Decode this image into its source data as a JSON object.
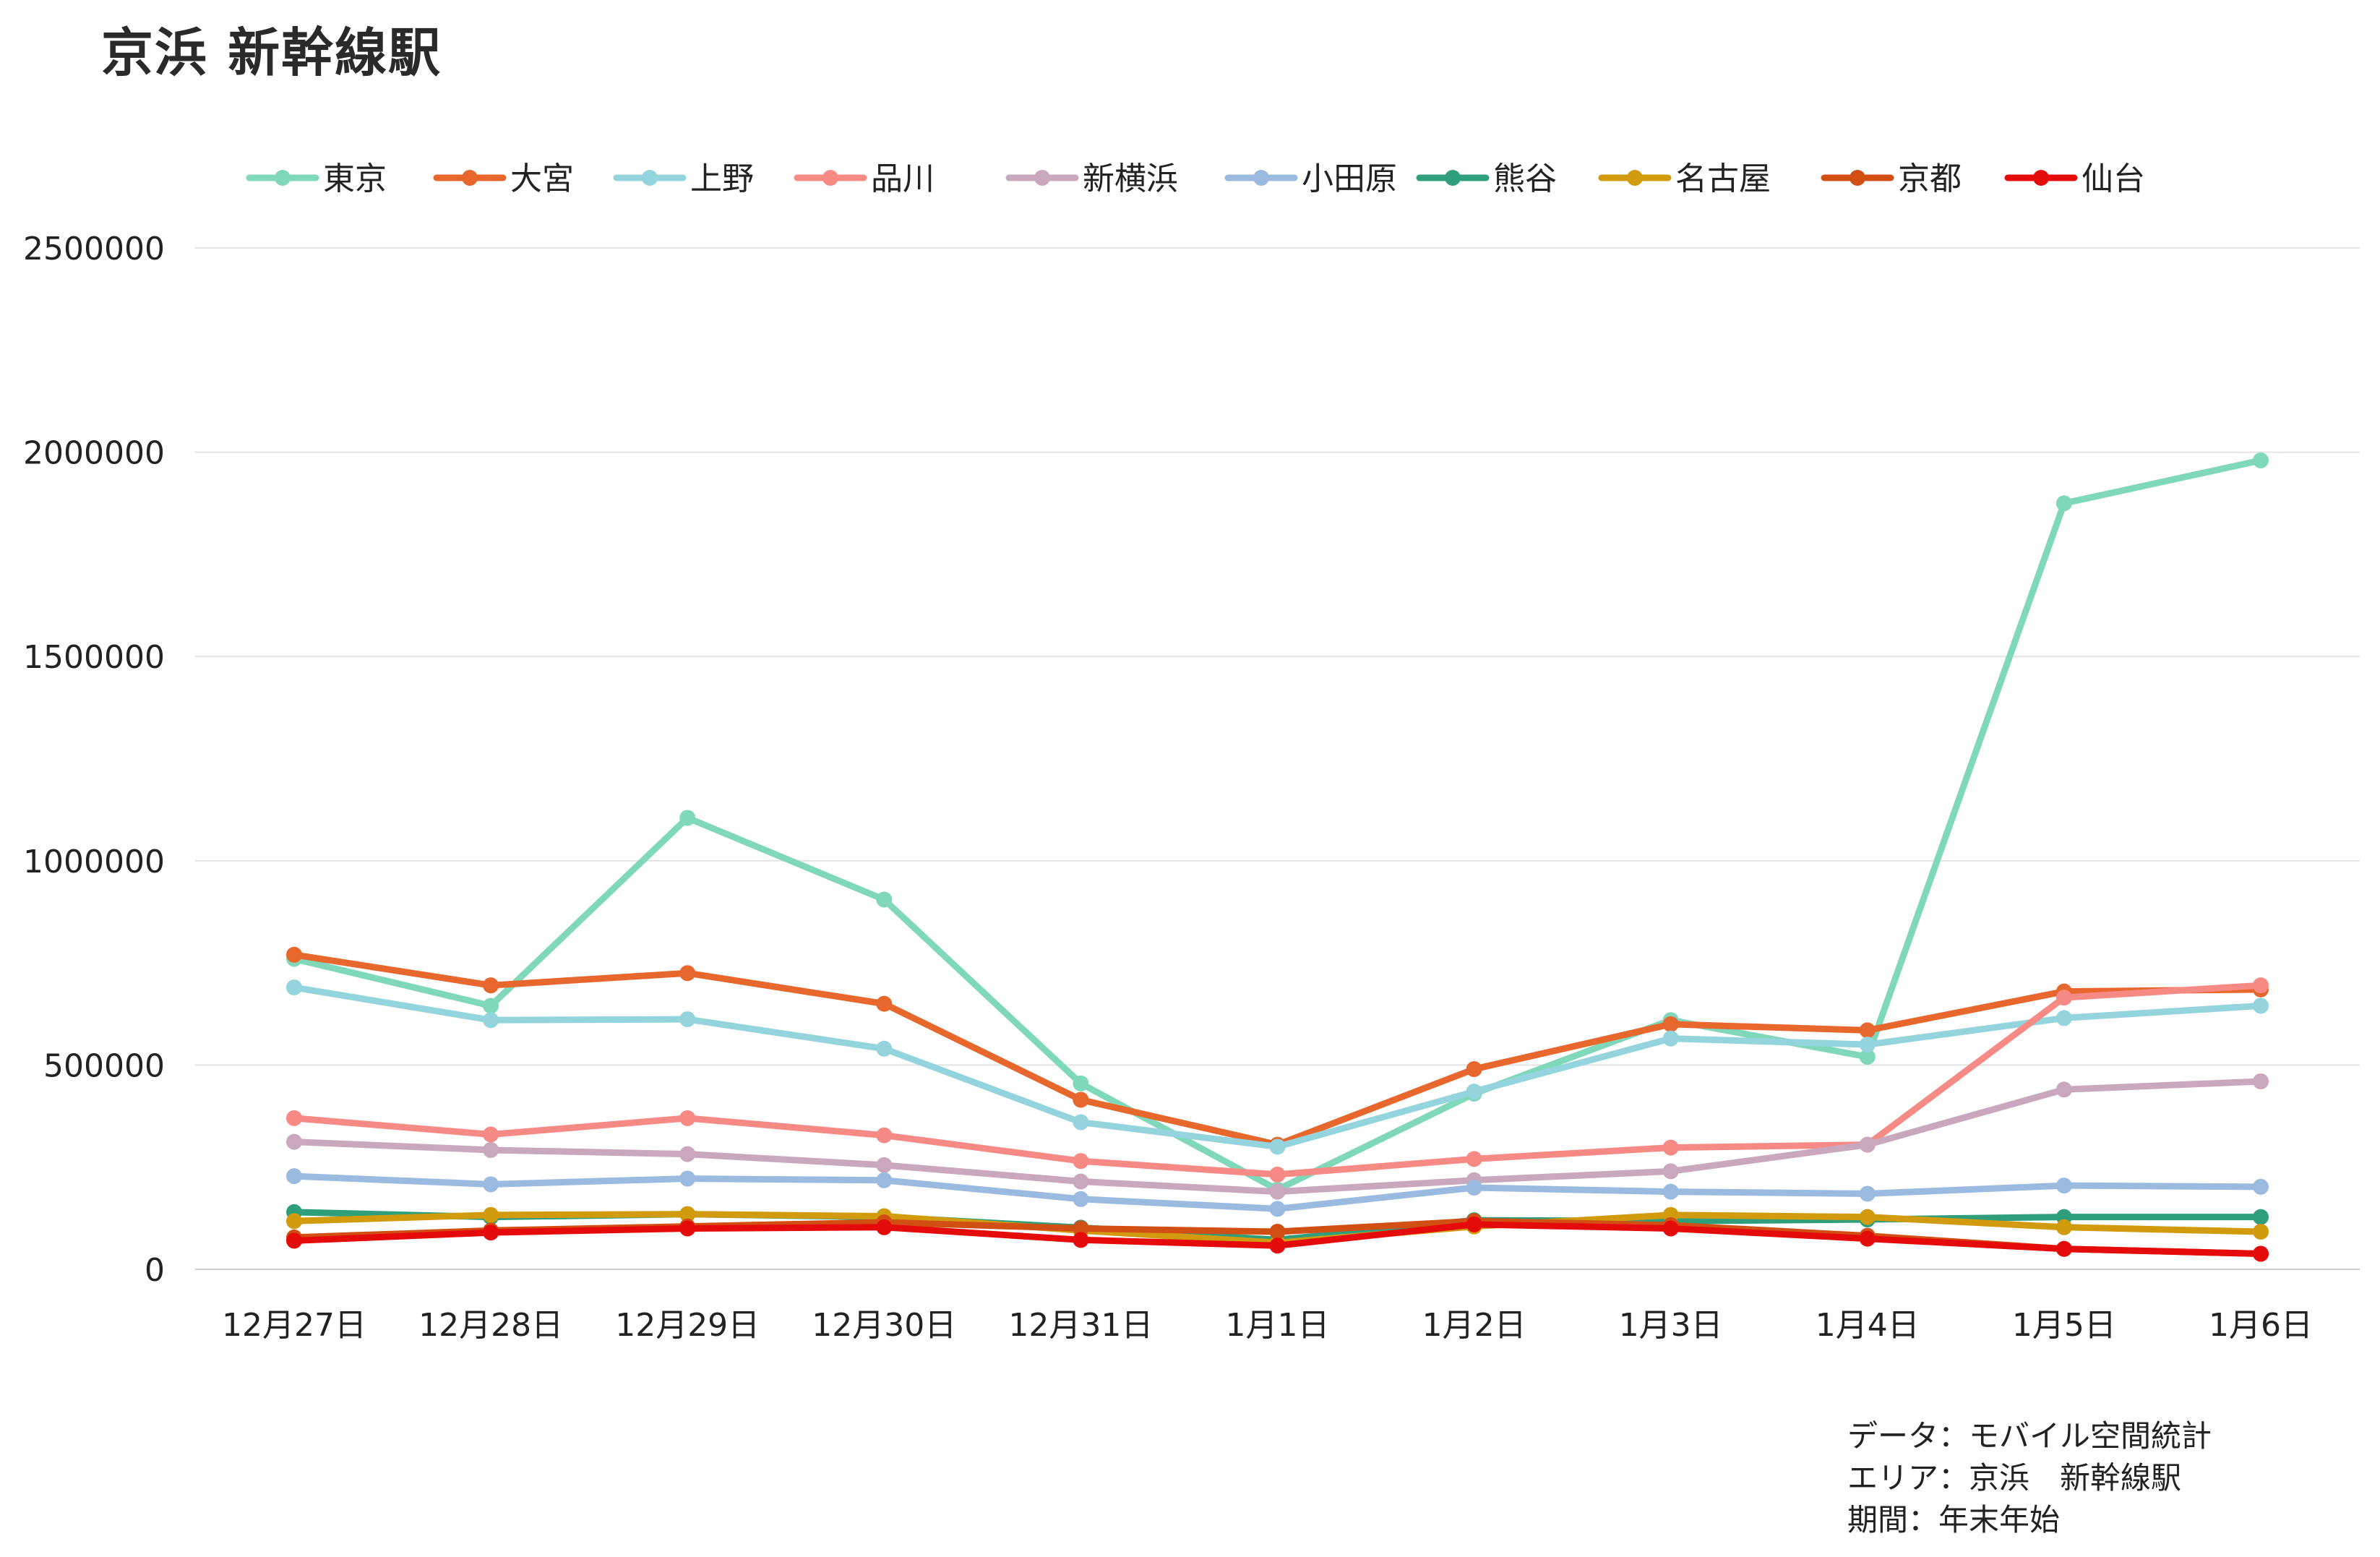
{
  "chart_data": {
    "type": "line",
    "title": "京浜 新幹線駅",
    "xlabel": "",
    "ylabel": "",
    "ylim": [
      0,
      2500000
    ],
    "yticks": [
      0,
      500000,
      1000000,
      1500000,
      2000000,
      2500000
    ],
    "grid": true,
    "legend_position": "top",
    "categories": [
      "12月27日",
      "12月28日",
      "12月29日",
      "12月30日",
      "12月31日",
      "1月1日",
      "1月2日",
      "1月3日",
      "1月4日",
      "1月5日",
      "1月6日"
    ],
    "series": [
      {
        "name": "東京",
        "color": "#7fd8b9",
        "values": [
          760000,
          645000,
          1105000,
          905000,
          455000,
          195000,
          430000,
          610000,
          520000,
          1875000,
          1980000
        ]
      },
      {
        "name": "大宮",
        "color": "#e8672d",
        "values": [
          770000,
          695000,
          725000,
          650000,
          415000,
          305000,
          490000,
          600000,
          585000,
          680000,
          685000
        ]
      },
      {
        "name": "上野",
        "color": "#93d4dd",
        "values": [
          690000,
          610000,
          612000,
          540000,
          360000,
          300000,
          435000,
          565000,
          550000,
          615000,
          645000
        ]
      },
      {
        "name": "品川",
        "color": "#f88a86",
        "values": [
          370000,
          330000,
          370000,
          328000,
          265000,
          232000,
          270000,
          298000,
          305000,
          665000,
          695000
        ]
      },
      {
        "name": "新横浜",
        "color": "#c9a8bd",
        "values": [
          312000,
          292000,
          282000,
          255000,
          215000,
          190000,
          218000,
          240000,
          305000,
          440000,
          460000
        ]
      },
      {
        "name": "小田原",
        "color": "#9bbadf",
        "values": [
          228000,
          208000,
          222000,
          218000,
          172000,
          148000,
          200000,
          190000,
          185000,
          205000,
          202000
        ]
      },
      {
        "name": "熊谷",
        "color": "#2f9e7a",
        "values": [
          140000,
          128000,
          135000,
          128000,
          102000,
          72000,
          120000,
          118000,
          122000,
          128000,
          128000
        ]
      },
      {
        "name": "名古屋",
        "color": "#d29b0e",
        "values": [
          118000,
          133000,
          135000,
          130000,
          95000,
          65000,
          105000,
          133000,
          128000,
          103000,
          92000
        ]
      },
      {
        "name": "京都",
        "color": "#d24f14",
        "values": [
          78000,
          95000,
          105000,
          115000,
          100000,
          92000,
          118000,
          108000,
          82000,
          50000,
          38000
        ]
      },
      {
        "name": "仙台",
        "color": "#e60b0b",
        "values": [
          70000,
          90000,
          100000,
          103000,
          72000,
          58000,
          110000,
          100000,
          75000,
          50000,
          38000
        ]
      }
    ]
  },
  "source_note": [
    "データ：モバイル空間統計",
    "エリア：京浜　新幹線駅",
    "期間：年末年始"
  ]
}
